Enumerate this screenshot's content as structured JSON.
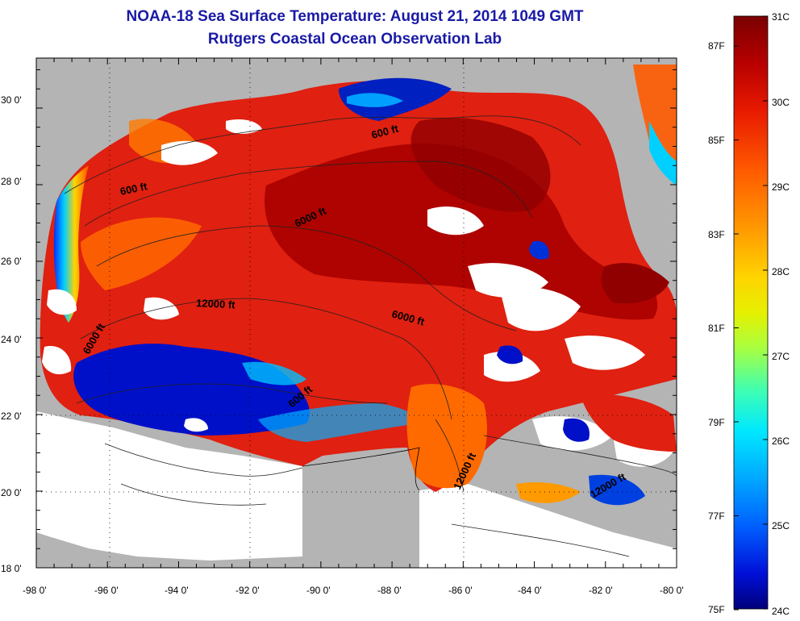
{
  "title": {
    "line1": "NOAA-18 Sea Surface Temperature:  August 21, 2014 1049 GMT",
    "line2": "Rutgers Coastal Ocean Observation Lab"
  },
  "axes": {
    "lat_labels": [
      "30 0'",
      "28 0'",
      "26 0'",
      "24 0'",
      "22 0'",
      "20 0'",
      "18 0'"
    ],
    "lon_labels": [
      "-98 0'",
      "-96 0'",
      "-94 0'",
      "-92 0'",
      "-90 0'",
      "-88 0'",
      "-86 0'",
      "-84 0'",
      "-82 0'",
      "-80 0'"
    ]
  },
  "contours": [
    {
      "label": "600 ft"
    },
    {
      "label": "600 ft"
    },
    {
      "label": "600 ft"
    },
    {
      "label": "6000 ft"
    },
    {
      "label": "6000 ft"
    },
    {
      "label": "6000 ft"
    },
    {
      "label": "12000 ft"
    },
    {
      "label": "12000 ft"
    },
    {
      "label": "12000 ft"
    }
  ],
  "colorbar": {
    "celsius": [
      "31C",
      "30C",
      "29C",
      "28C",
      "27C",
      "26C",
      "25C",
      "24C"
    ],
    "fahrenheit": [
      "87F",
      "85F",
      "83F",
      "81F",
      "79F",
      "77F",
      "75F"
    ],
    "colors": [
      "#7a0000",
      "#b80000",
      "#e81a00",
      "#ff5a00",
      "#ff9a00",
      "#ffd400",
      "#e6f000",
      "#a8ff40",
      "#40ffb0",
      "#00e8ff",
      "#00a8ff",
      "#0060ff",
      "#0010d8",
      "#00007a"
    ]
  },
  "colors": {
    "land_gray": "#b4b4b4",
    "no_data": "#ffffff",
    "title_blue": "#1a1aa6"
  }
}
